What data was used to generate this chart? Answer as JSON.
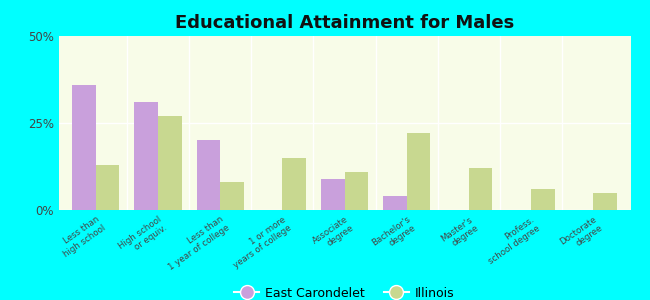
{
  "title": "Educational Attainment for Males",
  "categories": [
    "Less than\nhigh school",
    "High school\nor equiv.",
    "Less than\n1 year of college",
    "1 or more\nyears of college",
    "Associate\ndegree",
    "Bachelor's\ndegree",
    "Master's\ndegree",
    "Profess.\nschool degree",
    "Doctorate\ndegree"
  ],
  "east_carondelet": [
    36,
    31,
    20,
    0,
    9,
    4,
    0,
    0,
    0
  ],
  "illinois": [
    13,
    27,
    8,
    15,
    11,
    22,
    12,
    6,
    5
  ],
  "color_ec": "#c9a0dc",
  "color_il": "#c8d890",
  "background_chart_top": "#e8f0d0",
  "background_chart_bottom": "#f8fce8",
  "background_fig": "#00ffff",
  "ylim": [
    0,
    50
  ],
  "yticks": [
    0,
    25,
    50
  ],
  "ytick_labels": [
    "0%",
    "25%",
    "50%"
  ],
  "bar_width": 0.38,
  "legend_ec": "East Carondelet",
  "legend_il": "Illinois"
}
